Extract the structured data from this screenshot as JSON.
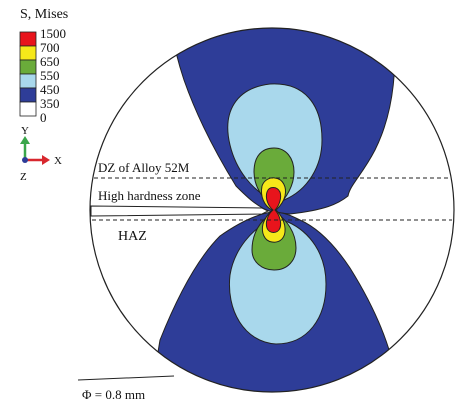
{
  "legend": {
    "title": "S, Mises",
    "bands": [
      {
        "label": "1500",
        "color": "#e8141c"
      },
      {
        "label": "700",
        "color": "#f6e81a"
      },
      {
        "label": "650",
        "color": "#6aab3a"
      },
      {
        "label": "550",
        "color": "#a9d8ec"
      },
      {
        "label": "450",
        "color": "#2e3d98"
      },
      {
        "label": "350",
        "color": "#ffffff"
      }
    ],
    "bottom_label": "0"
  },
  "triad": {
    "y_label": "Y",
    "x_label": "X",
    "z_label": "Z"
  },
  "annotations": {
    "dz": "DZ of Alloy 52M",
    "high_hardness": "High hardness zone",
    "haz": "HAZ",
    "diameter": "Φ = 0.8 mm"
  },
  "colors": {
    "red": "#e8141c",
    "yellow": "#f6e81a",
    "green": "#6aab3a",
    "light_blue": "#a9d8ec",
    "dark_blue": "#2e3d98",
    "outline": "#222222"
  }
}
